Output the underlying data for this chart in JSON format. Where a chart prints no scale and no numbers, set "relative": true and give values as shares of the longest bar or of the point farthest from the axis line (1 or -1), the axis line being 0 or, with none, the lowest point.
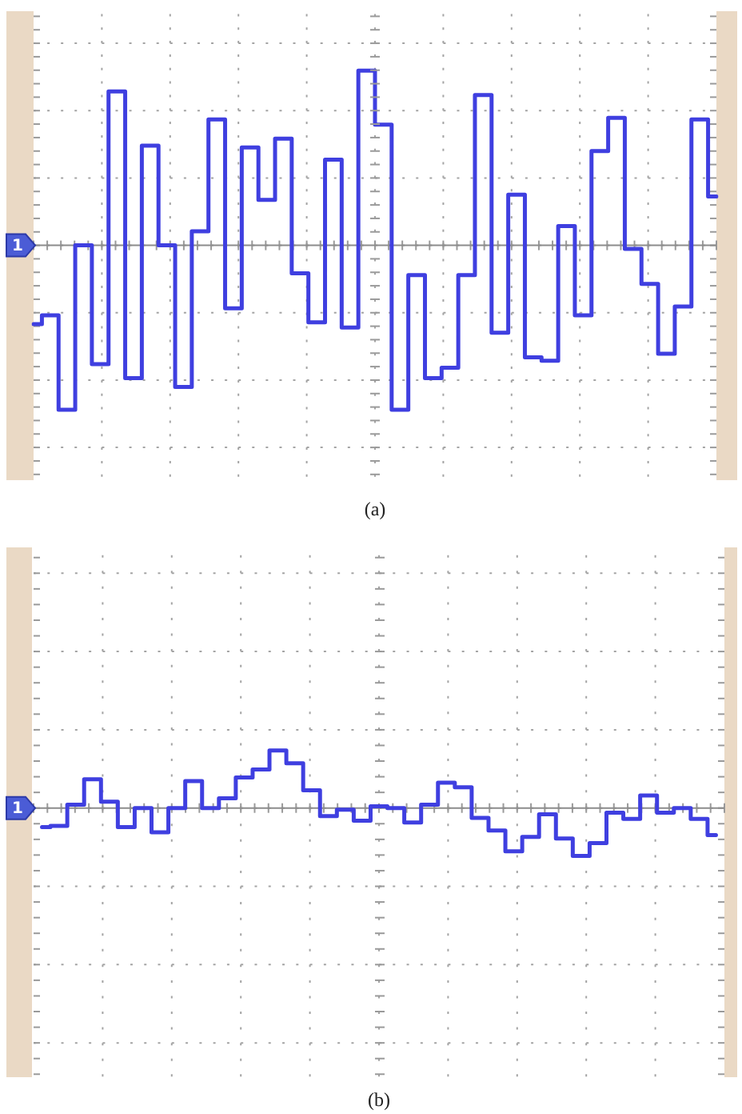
{
  "chart_data": [
    {
      "type": "step",
      "title": "(a)",
      "relative": true,
      "grid": true,
      "categories": [
        null,
        null,
        null,
        null,
        null,
        null,
        null,
        null,
        null,
        null,
        null,
        null,
        null,
        null,
        null,
        null,
        null,
        null,
        null,
        null,
        null,
        null,
        null,
        null,
        null,
        null,
        null,
        null,
        null,
        null,
        null,
        null,
        null,
        null,
        null,
        null,
        null,
        null,
        null,
        null,
        null,
        null
      ],
      "series": [
        {
          "color": "#3f3fe0",
          "values": [
            -0.45,
            -0.4,
            -0.94,
            0.0,
            -0.68,
            0.88,
            -0.76,
            0.57,
            0.0,
            -0.81,
            0.08,
            0.72,
            -0.36,
            0.56,
            0.26,
            0.61,
            -0.16,
            -0.44,
            0.49,
            -0.47,
            1.0,
            0.69,
            -0.94,
            -0.17,
            -0.76,
            -0.7,
            -0.17,
            0.86,
            -0.5,
            0.29,
            -0.64,
            -0.66,
            0.11,
            -0.4,
            0.54,
            0.73,
            -0.02,
            -0.22,
            -0.62,
            -0.35,
            0.72,
            0.28
          ]
        }
      ],
      "ref_lines": [
        {
          "axis": "y",
          "value": 0,
          "color": "#8c8c8c"
        }
      ],
      "annotations": [
        {
          "text": "1",
          "y": 0
        }
      ]
    },
    {
      "type": "step",
      "title": "(b)",
      "relative": true,
      "grid": true,
      "categories": [
        null,
        null,
        null,
        null,
        null,
        null,
        null,
        null,
        null,
        null,
        null,
        null,
        null,
        null,
        null,
        null,
        null,
        null,
        null,
        null,
        null,
        null,
        null,
        null,
        null,
        null,
        null,
        null,
        null,
        null,
        null,
        null,
        null,
        null,
        null,
        null,
        null,
        null,
        null,
        null,
        null
      ],
      "series": [
        {
          "color": "#3f3fe0",
          "values": [
            -0.33,
            -0.31,
            0.06,
            0.5,
            0.11,
            -0.33,
            0.0,
            -0.42,
            0.0,
            0.47,
            0.0,
            0.17,
            0.53,
            0.67,
            1.0,
            0.78,
            0.31,
            -0.14,
            -0.03,
            -0.22,
            0.03,
            0.0,
            -0.25,
            0.06,
            0.44,
            0.36,
            -0.17,
            -0.39,
            -0.75,
            -0.5,
            -0.11,
            -0.53,
            -0.83,
            -0.61,
            -0.08,
            -0.19,
            0.22,
            -0.08,
            0.0,
            -0.19,
            -0.47
          ]
        }
      ],
      "ref_lines": [
        {
          "axis": "y",
          "value": 0,
          "color": "#8c8c8c"
        }
      ],
      "annotations": [
        {
          "text": "1",
          "y": 0
        }
      ]
    }
  ]
}
